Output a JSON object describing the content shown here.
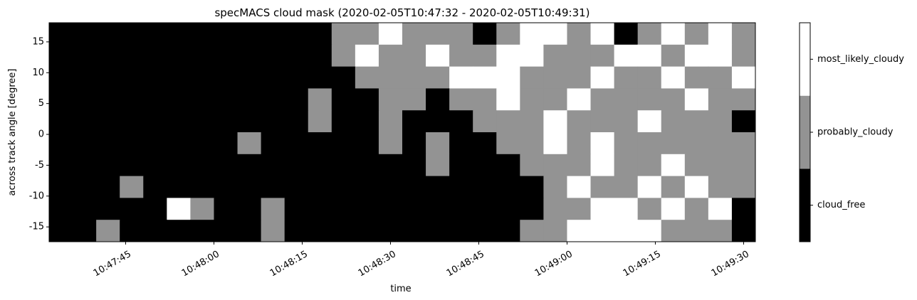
{
  "chart_data": {
    "type": "heatmap",
    "title": "specMACS cloud mask (2020-02-05T10:47:32 - 2020-02-05T10:49:31)",
    "x_label": "time",
    "y_label": "across track angle [degree]",
    "xlim": [
      "10:47:32",
      "10:49:32"
    ],
    "xticks": [
      "10:47:45",
      "10:48:00",
      "10:48:15",
      "10:48:30",
      "10:48:45",
      "10:49:00",
      "10:49:15",
      "10:49:30"
    ],
    "ylim": [
      -17.4,
      18.1
    ],
    "yticks": [
      -15,
      -10,
      -5,
      0,
      5,
      10,
      15
    ],
    "classes": [
      {
        "name": "cloud_free",
        "color": "#000000"
      },
      {
        "name": "probably_cloudy",
        "color": "#939393"
      },
      {
        "name": "most_likely_cloudy",
        "color": "#ffffff"
      }
    ],
    "z": [
      [
        0,
        0,
        0,
        0,
        0,
        0,
        0,
        0,
        0,
        0,
        0,
        0,
        1,
        1,
        2,
        1,
        1,
        1,
        0,
        1,
        2,
        2,
        1,
        2,
        0,
        1,
        2,
        1,
        2,
        1
      ],
      [
        0,
        0,
        0,
        0,
        0,
        0,
        0,
        0,
        0,
        0,
        0,
        0,
        1,
        2,
        1,
        1,
        2,
        1,
        1,
        2,
        2,
        1,
        1,
        1,
        2,
        2,
        1,
        2,
        2,
        1
      ],
      [
        0,
        0,
        0,
        0,
        0,
        0,
        0,
        0,
        0,
        0,
        0,
        0,
        0,
        1,
        1,
        1,
        1,
        2,
        2,
        2,
        1,
        1,
        1,
        2,
        1,
        1,
        2,
        1,
        1,
        2
      ],
      [
        0,
        0,
        0,
        0,
        0,
        0,
        0,
        0,
        0,
        0,
        0,
        1,
        0,
        0,
        1,
        1,
        0,
        1,
        1,
        2,
        1,
        1,
        2,
        1,
        1,
        1,
        1,
        2,
        1,
        1
      ],
      [
        0,
        0,
        0,
        0,
        0,
        0,
        0,
        0,
        0,
        0,
        0,
        1,
        0,
        0,
        1,
        0,
        0,
        0,
        1,
        1,
        1,
        2,
        1,
        1,
        1,
        2,
        1,
        1,
        1,
        0
      ],
      [
        0,
        0,
        0,
        0,
        0,
        0,
        0,
        0,
        1,
        0,
        0,
        0,
        0,
        0,
        1,
        0,
        1,
        0,
        0,
        1,
        1,
        2,
        1,
        2,
        1,
        1,
        1,
        1,
        1,
        1
      ],
      [
        0,
        0,
        0,
        0,
        0,
        0,
        0,
        0,
        0,
        0,
        0,
        0,
        0,
        0,
        0,
        0,
        1,
        0,
        0,
        0,
        1,
        1,
        1,
        2,
        1,
        1,
        2,
        1,
        1,
        1
      ],
      [
        0,
        0,
        0,
        1,
        0,
        0,
        0,
        0,
        0,
        0,
        0,
        0,
        0,
        0,
        0,
        0,
        0,
        0,
        0,
        0,
        0,
        1,
        2,
        1,
        1,
        2,
        1,
        2,
        1,
        1
      ],
      [
        0,
        0,
        0,
        0,
        0,
        2,
        1,
        0,
        0,
        1,
        0,
        0,
        0,
        0,
        0,
        0,
        0,
        0,
        0,
        0,
        0,
        1,
        1,
        2,
        2,
        1,
        2,
        1,
        2,
        0
      ],
      [
        0,
        0,
        1,
        0,
        0,
        0,
        0,
        0,
        0,
        1,
        0,
        0,
        0,
        0,
        0,
        0,
        0,
        0,
        0,
        0,
        1,
        1,
        2,
        2,
        2,
        2,
        1,
        1,
        1,
        0
      ]
    ]
  }
}
